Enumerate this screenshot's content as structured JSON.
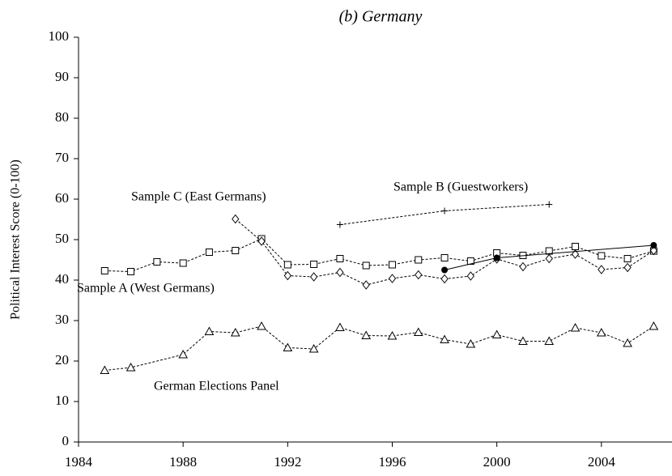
{
  "chart_data": {
    "type": "line",
    "title": "(b) Germany",
    "y_label": "Political Interest Score (0-100)",
    "xlim": [
      1984,
      2006.7
    ],
    "xticks": [
      1984,
      1988,
      1992,
      1996,
      2000,
      2004
    ],
    "ylim": [
      0,
      100
    ],
    "yticks": [
      0,
      10,
      20,
      30,
      40,
      50,
      60,
      70,
      80,
      90,
      100
    ],
    "series": [
      {
        "name": "Sample A (West Germans)",
        "marker": "square",
        "dash": true,
        "color": "#000000",
        "x": [
          1985,
          1986,
          1987,
          1988,
          1989,
          1990,
          1991,
          1992,
          1993,
          1994,
          1995,
          1996,
          1997,
          1998,
          1999,
          2000,
          2001,
          2002,
          2003,
          2004,
          2005,
          2006
        ],
        "values": [
          42.3,
          42.1,
          44.5,
          44.2,
          46.9,
          47.3,
          50.2,
          43.8,
          43.9,
          45.3,
          43.6,
          43.8,
          45.0,
          45.5,
          44.7,
          46.7,
          46.1,
          47.2,
          48.3,
          46.0,
          45.3,
          47.2
        ]
      },
      {
        "name": "Sample C (East Germans)",
        "marker": "diamond",
        "dash": true,
        "color": "#000000",
        "x": [
          1990,
          1991,
          1992,
          1993,
          1994,
          1995,
          1996,
          1997,
          1998,
          1999,
          2000,
          2001,
          2002,
          2003,
          2004,
          2005,
          2006
        ],
        "values": [
          55.1,
          49.6,
          41.1,
          40.8,
          41.9,
          38.8,
          40.4,
          41.3,
          40.3,
          41.0,
          45.2,
          43.3,
          45.3,
          46.4,
          42.6,
          43.1,
          47.3
        ]
      },
      {
        "name": "Sample B (Guestworkers)",
        "marker": "triangle",
        "dash": true,
        "color": "#000000",
        "x": [
          1985,
          1986,
          1988,
          1989,
          1990,
          1991,
          1992,
          1993,
          1994,
          1995,
          1996,
          1997,
          1998,
          1999,
          2000,
          2001,
          2002,
          2003,
          2004,
          2005,
          2006
        ],
        "values": [
          17.7,
          18.4,
          21.6,
          27.3,
          27.0,
          28.6,
          23.3,
          23.0,
          28.3,
          26.3,
          26.2,
          27.1,
          25.3,
          24.2,
          26.5,
          24.9,
          24.9,
          28.2,
          27.0,
          24.4,
          28.6
        ]
      },
      {
        "name": "German Elections Panel",
        "marker": "plus",
        "dash": true,
        "color": "#000000",
        "x": [
          1994,
          1998,
          2002
        ],
        "values": [
          53.7,
          57.1,
          58.7
        ]
      },
      {
        "marker": "circle",
        "dash": false,
        "color": "#000000",
        "x": [
          1998,
          2000,
          2006
        ],
        "values": [
          42.5,
          45.5,
          48.6
        ]
      }
    ]
  }
}
